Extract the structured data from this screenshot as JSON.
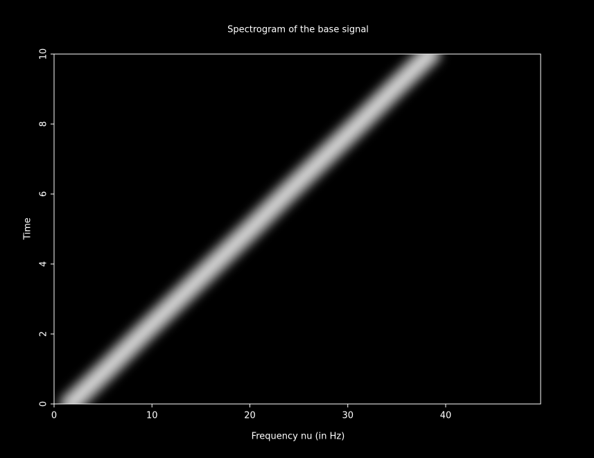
{
  "chart_data": {
    "type": "spectrogram",
    "title": "Spectrogram of the base signal",
    "xlabel": "Frequency nu (in Hz)",
    "ylabel": "Time",
    "x": [
      1.7,
      5.4,
      9.0,
      12.7,
      16.4,
      20.1,
      23.7,
      27.4,
      31.1,
      34.7,
      38.4
    ],
    "values": [
      0,
      1,
      2,
      3,
      4,
      5,
      6,
      7,
      8,
      9,
      10
    ],
    "color": "#ffffff",
    "xlim": [
      0,
      49.7
    ],
    "xticks": [
      0,
      10,
      20,
      30,
      40
    ],
    "ylim": [
      0,
      10
    ],
    "yticks": [
      0,
      2,
      4,
      6,
      8,
      10
    ]
  }
}
